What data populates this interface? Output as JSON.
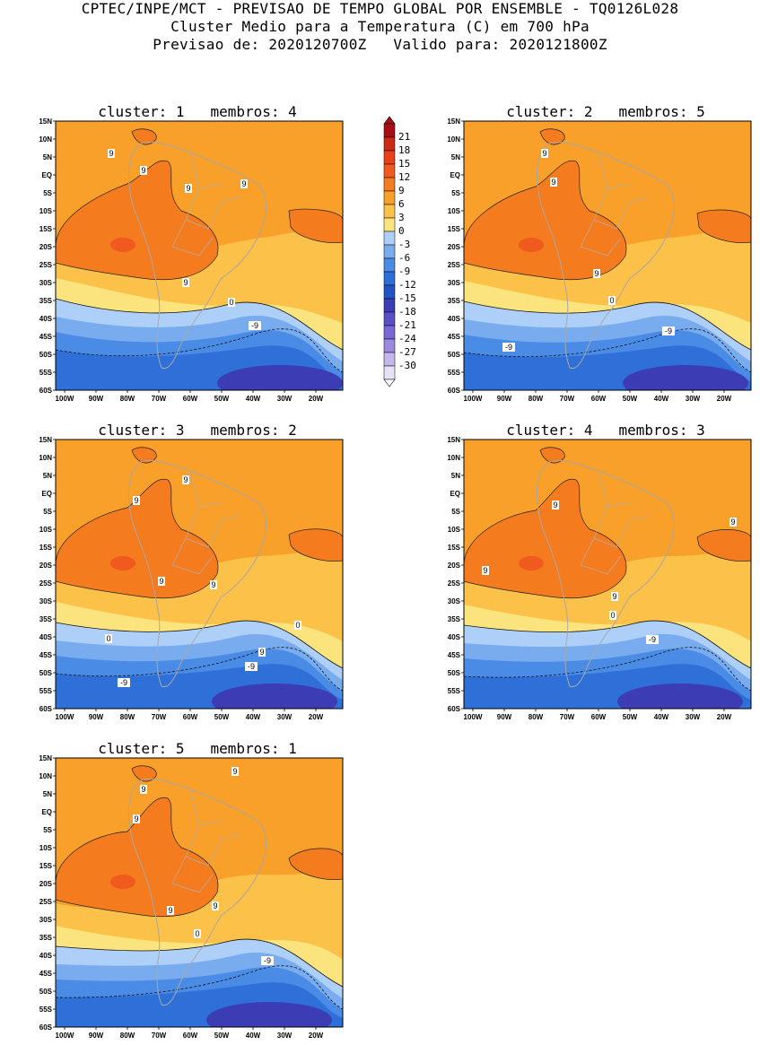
{
  "title": {
    "line1": "CPTEC/INPE/MCT - PREVISAO DE TEMPO GLOBAL POR ENSEMBLE - TQ0126L028",
    "line2": "Cluster Medio para a Temperatura (C) em 700 hPa",
    "line3": "Previsao de: 2020120700Z   Valido para: 2020121800Z"
  },
  "axes": {
    "lat_labels": [
      "15N",
      "10N",
      "5N",
      "EQ",
      "5S",
      "10S",
      "15S",
      "20S",
      "25S",
      "30S",
      "35S",
      "40S",
      "45S",
      "50S",
      "55S",
      "60S"
    ],
    "lon_labels": [
      "100W",
      "90W",
      "80W",
      "70W",
      "60W",
      "50W",
      "40W",
      "30W",
      "20W"
    ]
  },
  "colorbar": {
    "labels": [
      "21",
      "18",
      "15",
      "12",
      "9",
      "6",
      "3",
      "0",
      "-3",
      "-6",
      "-9",
      "-12",
      "-15",
      "-18",
      "-21",
      "-24",
      "-27",
      "-30"
    ],
    "colors": [
      "#a50f15",
      "#cb2a16",
      "#e8401a",
      "#f05a1e",
      "#f57b1f",
      "#f8a029",
      "#fbc148",
      "#fbe37d",
      "#aed0f8",
      "#78acef",
      "#4a8be6",
      "#2e6fd8",
      "#2255c4",
      "#3c3cb4",
      "#5b4fc8",
      "#7a68d6",
      "#9c8ae0",
      "#c4b7ec",
      "#e6e1f5"
    ]
  },
  "clusters": [
    {
      "title": "cluster: 1   membros: 4",
      "labels": [
        "9",
        "9",
        "9",
        "9",
        "9",
        "0",
        "-9"
      ]
    },
    {
      "title": "cluster: 2   membros: 5",
      "labels": [
        "9",
        "9",
        "9",
        "0",
        "-9",
        "-9"
      ]
    },
    {
      "title": "cluster: 3   membros: 2",
      "labels": [
        "9",
        "9",
        "9",
        "9",
        "9",
        "0",
        "0",
        "-9",
        "-9"
      ]
    },
    {
      "title": "cluster: 4   membros: 3",
      "labels": [
        "9",
        "9",
        "9",
        "9",
        "0",
        "-9"
      ]
    },
    {
      "title": "cluster: 5   membros: 1",
      "labels": [
        "9",
        "9",
        "9",
        "9",
        "9",
        "0",
        "-9"
      ]
    }
  ]
}
